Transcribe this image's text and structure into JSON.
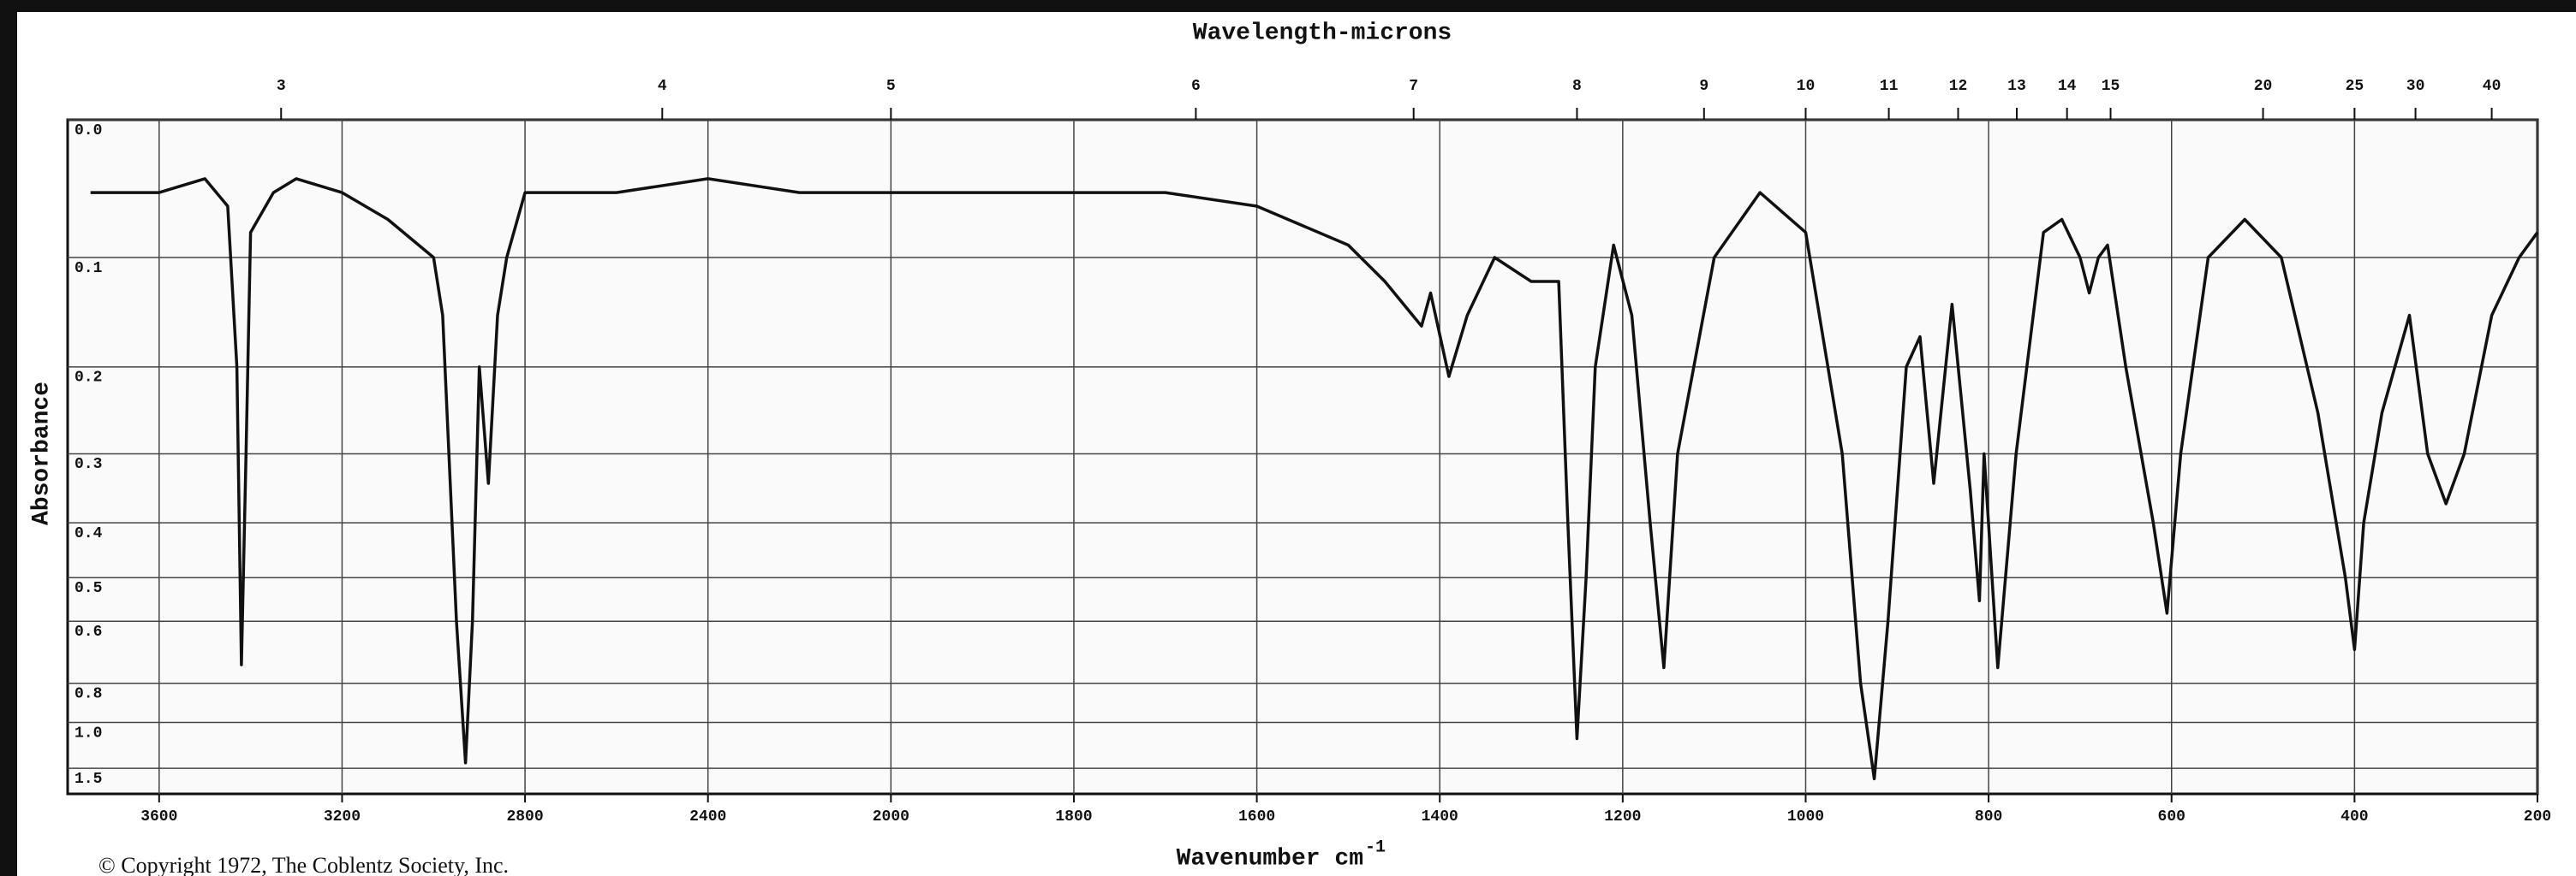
{
  "chart_data": {
    "type": "line",
    "title": "Wavelength-microns",
    "xlabel": "Wavenumber cm",
    "xlabel_sup": "-1",
    "ylabel": "Absorbance",
    "note": "© Copyright 1972, The Coblentz Society, Inc.",
    "color": "#111111",
    "grid": true,
    "y_scale": "transmittance",
    "x_break": {
      "at": 2000,
      "factor": 2
    },
    "xlim": [
      3800,
      200
    ],
    "xticks": [
      3600,
      3200,
      2800,
      2400,
      2000,
      1800,
      1600,
      1400,
      1200,
      1000,
      800,
      600,
      400,
      200
    ],
    "x2ticks": [
      3,
      4,
      5,
      6,
      7,
      8,
      9,
      10,
      11,
      12,
      13,
      14,
      15,
      20,
      25,
      30,
      40
    ],
    "ylim": [
      0,
      2
    ],
    "yticks": [
      {
        "value": 0,
        "label": "0.0"
      },
      0.1,
      0.2,
      0.3,
      0.4,
      0.5,
      0.6,
      0.8,
      {
        "value": 1,
        "label": "1.0"
      },
      1.5
    ],
    "x": [
      3750,
      3700,
      3600,
      3500,
      3450,
      3430,
      3420,
      3410,
      3400,
      3350,
      3300,
      3200,
      3100,
      3000,
      2980,
      2950,
      2930,
      2915,
      2900,
      2880,
      2860,
      2840,
      2800,
      2600,
      2400,
      2200,
      2000,
      1900,
      1800,
      1700,
      1600,
      1500,
      1460,
      1420,
      1410,
      1390,
      1370,
      1340,
      1300,
      1270,
      1260,
      1250,
      1240,
      1230,
      1210,
      1190,
      1170,
      1155,
      1140,
      1100,
      1050,
      1000,
      960,
      940,
      925,
      910,
      890,
      875,
      860,
      840,
      820,
      810,
      805,
      790,
      770,
      740,
      720,
      700,
      690,
      680,
      670,
      650,
      620,
      605,
      590,
      560,
      520,
      480,
      440,
      410,
      400,
      390,
      370,
      340,
      320,
      300,
      280,
      250,
      220,
      200
    ],
    "values": [
      0.05,
      0.05,
      0.05,
      0.04,
      0.06,
      0.2,
      0.73,
      0.3,
      0.08,
      0.05,
      0.04,
      0.05,
      0.07,
      0.1,
      0.15,
      0.6,
      1.4,
      0.6,
      0.2,
      0.34,
      0.15,
      0.1,
      0.05,
      0.05,
      0.04,
      0.05,
      0.05,
      0.05,
      0.05,
      0.05,
      0.06,
      0.09,
      0.12,
      0.16,
      0.13,
      0.21,
      0.15,
      0.1,
      0.12,
      0.12,
      0.4,
      1.12,
      0.5,
      0.2,
      0.09,
      0.15,
      0.4,
      0.74,
      0.3,
      0.1,
      0.05,
      0.08,
      0.3,
      0.8,
      1.8,
      0.6,
      0.2,
      0.17,
      0.34,
      0.14,
      0.35,
      0.55,
      0.3,
      0.74,
      0.3,
      0.08,
      0.07,
      0.1,
      0.13,
      0.1,
      0.09,
      0.2,
      0.4,
      0.58,
      0.3,
      0.1,
      0.07,
      0.1,
      0.25,
      0.5,
      0.68,
      0.4,
      0.25,
      0.15,
      0.3,
      0.37,
      0.3,
      0.15,
      0.1,
      0.08
    ]
  }
}
